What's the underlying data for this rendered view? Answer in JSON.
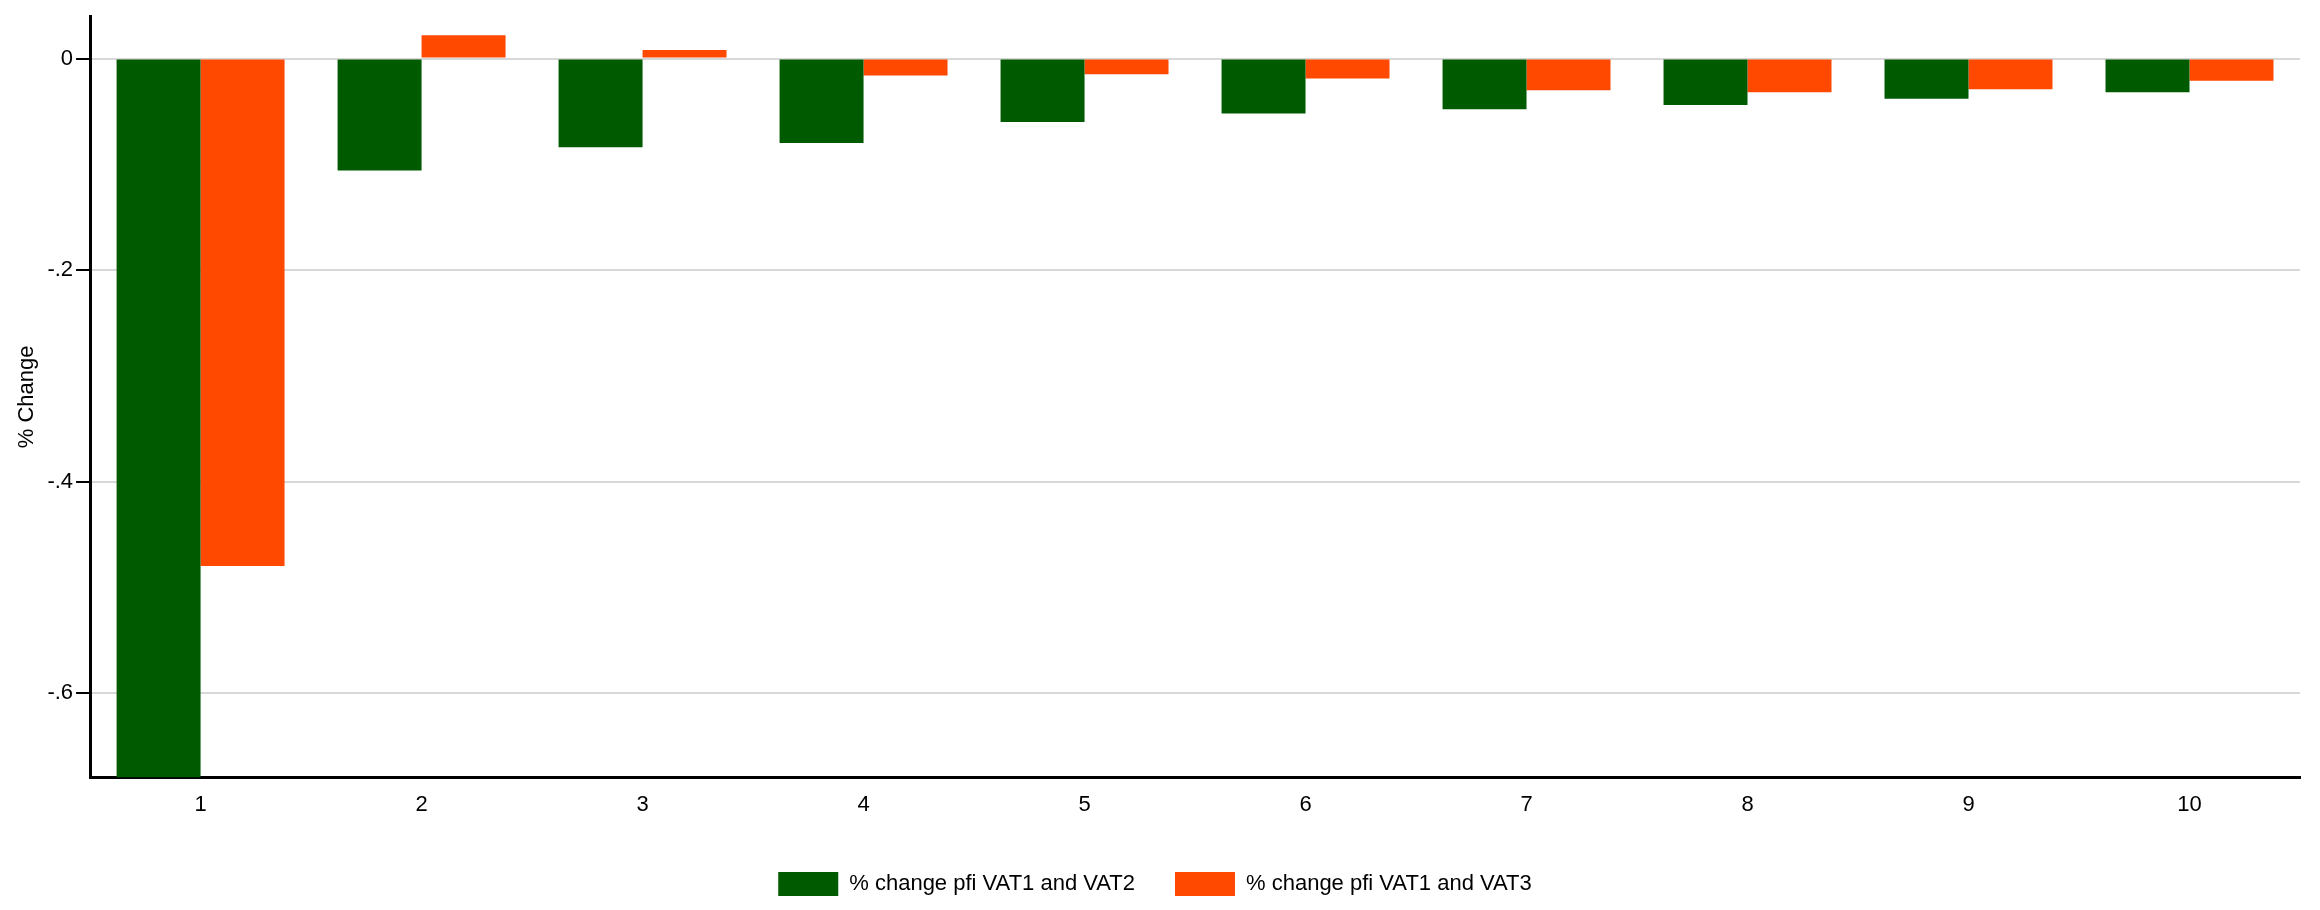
{
  "chart_data": {
    "type": "bar",
    "ylabel": "% Change",
    "categories": [
      "1",
      "2",
      "3",
      "4",
      "5",
      "6",
      "7",
      "8",
      "9",
      "10"
    ],
    "series": [
      {
        "name": "% change pfi VAT1 and VAT2",
        "color": "#005a00",
        "values": [
          -0.68,
          -0.106,
          -0.084,
          -0.08,
          -0.06,
          -0.052,
          -0.048,
          -0.044,
          -0.038,
          -0.032
        ]
      },
      {
        "name": "% change pfi VAT1 and VAT3",
        "color": "#ff4800",
        "values": [
          -0.48,
          0.022,
          0.008,
          -0.016,
          -0.015,
          -0.019,
          -0.03,
          -0.032,
          -0.029,
          -0.021
        ]
      }
    ],
    "ylim": [
      -0.68,
      0.04
    ],
    "yticks": [
      {
        "value": 0,
        "label": "0"
      },
      {
        "value": -0.2,
        "label": "-.2"
      },
      {
        "value": -0.4,
        "label": "-.4"
      },
      {
        "value": -0.6,
        "label": "-.6"
      }
    ],
    "grid": "y",
    "legend": "bottom"
  }
}
